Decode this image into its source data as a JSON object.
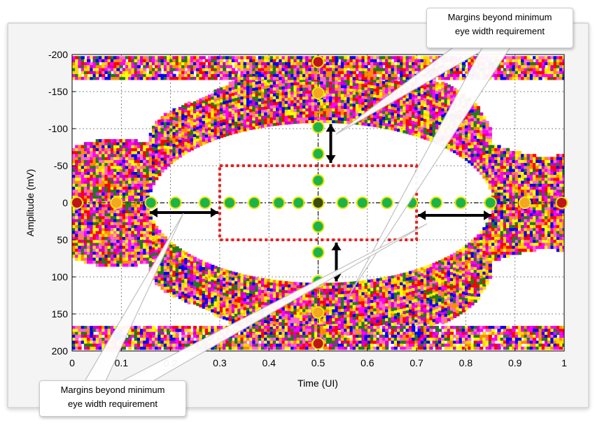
{
  "chart_data": {
    "type": "eye-diagram",
    "xlabel": "Time (UI)",
    "ylabel": "Amplitude (mV)",
    "xlim": [
      0,
      1
    ],
    "ylim": [
      200,
      -200
    ],
    "x_ticks": [
      0,
      0.1,
      0.2,
      0.3,
      0.4,
      0.5,
      0.6,
      0.7,
      0.8,
      0.9,
      1
    ],
    "x_tick_labels": [
      "0",
      "0.1",
      "0.2",
      "0.3",
      "0.4",
      "0.5",
      "0.6",
      "0.7",
      "0.8",
      "0.9",
      "1"
    ],
    "y_ticks": [
      -200,
      -150,
      -100,
      -50,
      0,
      50,
      100,
      150,
      200
    ],
    "y_tick_labels": [
      "-200",
      "-150",
      "-100",
      "-50",
      "0",
      "50",
      "100",
      "150",
      "200"
    ],
    "grid": true,
    "min_eye_mask": {
      "x": [
        0.3,
        0.7
      ],
      "y": [
        -50,
        50
      ]
    },
    "eye_opening": {
      "x": [
        0.155,
        0.855
      ],
      "y": [
        -110,
        110
      ]
    },
    "horizontal_scan_points": [
      {
        "x": 0.01,
        "y": 0,
        "status": "fail"
      },
      {
        "x": 0.09,
        "y": 0,
        "status": "marginal"
      },
      {
        "x": 0.16,
        "y": 0,
        "status": "pass"
      },
      {
        "x": 0.21,
        "y": 0,
        "status": "pass"
      },
      {
        "x": 0.27,
        "y": 0,
        "status": "pass"
      },
      {
        "x": 0.32,
        "y": 0,
        "status": "pass"
      },
      {
        "x": 0.37,
        "y": 0,
        "status": "pass"
      },
      {
        "x": 0.42,
        "y": 0,
        "status": "pass"
      },
      {
        "x": 0.46,
        "y": 0,
        "status": "pass"
      },
      {
        "x": 0.5,
        "y": 0,
        "status": "center"
      },
      {
        "x": 0.55,
        "y": 0,
        "status": "pass"
      },
      {
        "x": 0.59,
        "y": 0,
        "status": "pass"
      },
      {
        "x": 0.64,
        "y": 0,
        "status": "pass"
      },
      {
        "x": 0.69,
        "y": 0,
        "status": "pass"
      },
      {
        "x": 0.74,
        "y": 0,
        "status": "pass"
      },
      {
        "x": 0.79,
        "y": 0,
        "status": "pass"
      },
      {
        "x": 0.85,
        "y": 0,
        "status": "pass"
      },
      {
        "x": 0.92,
        "y": 0,
        "status": "marginal"
      },
      {
        "x": 0.995,
        "y": 0,
        "status": "fail"
      }
    ],
    "vertical_scan_points": [
      {
        "x": 0.5,
        "y": -190,
        "status": "fail"
      },
      {
        "x": 0.5,
        "y": -148,
        "status": "marginal"
      },
      {
        "x": 0.5,
        "y": -102,
        "status": "pass"
      },
      {
        "x": 0.5,
        "y": -66,
        "status": "pass"
      },
      {
        "x": 0.5,
        "y": -30,
        "status": "pass"
      },
      {
        "x": 0.5,
        "y": 32,
        "status": "pass"
      },
      {
        "x": 0.5,
        "y": 67,
        "status": "pass"
      },
      {
        "x": 0.5,
        "y": 106,
        "status": "pass"
      },
      {
        "x": 0.5,
        "y": 148,
        "status": "marginal"
      },
      {
        "x": 0.5,
        "y": 190,
        "status": "fail"
      }
    ],
    "point_colors": {
      "pass": "#1db34a",
      "marginal": "#f5a623",
      "fail": "#c0141c",
      "center": "#3a4a10",
      "outline": "#e8e800"
    },
    "trace_colors": [
      "#ff0000",
      "#ff00ff",
      "#ffff00",
      "#ff8c00",
      "#0000ff",
      "#1e7a1e",
      "#ff66cc",
      "#cc00cc",
      "#ffd700"
    ],
    "mask_color": "#e81e1e"
  },
  "callouts": {
    "top": {
      "line1": "Margins beyond minimum",
      "line2": "eye width requirement"
    },
    "bottom": {
      "line1": "Margins beyond minimum",
      "line2": "eye width requirement"
    }
  }
}
